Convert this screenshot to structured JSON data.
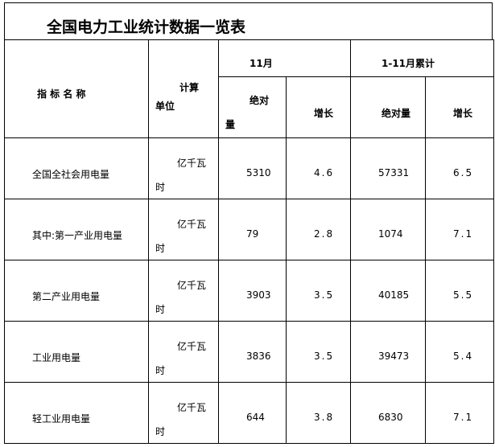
{
  "title": "全国电力工业统计数据一览表",
  "header": {
    "indicator": "指 标 名 称",
    "unit_line1": "计算",
    "unit_line2": "单位",
    "month": "11月",
    "cumulative": "1-11月累计",
    "abs_line1": "绝对",
    "abs_line2": "量",
    "growth": "增长",
    "cum_abs": "绝对量",
    "cum_growth": "增长"
  },
  "rows": [
    {
      "name": "全国全社会用电量",
      "unit1": "亿千瓦",
      "unit2": "时",
      "m_abs": "5310",
      "m_growth": "4.6",
      "c_abs": "57331",
      "c_growth": "6.5"
    },
    {
      "name": "其中:第一产业用电量",
      "unit1": "亿千瓦",
      "unit2": "时",
      "m_abs": "79",
      "m_growth": "2.8",
      "c_abs": "1074",
      "c_growth": "7.1"
    },
    {
      "name": "第二产业用电量",
      "unit1": "亿千瓦",
      "unit2": "时",
      "m_abs": "3903",
      "m_growth": "3.5",
      "c_abs": "40185",
      "c_growth": "5.5"
    },
    {
      "name": "工业用电量",
      "unit1": "亿千瓦",
      "unit2": "时",
      "m_abs": "3836",
      "m_growth": "3.5",
      "c_abs": "39473",
      "c_growth": "5.4"
    },
    {
      "name": "轻工业用电量",
      "unit1": "亿千瓦",
      "unit2": "时",
      "m_abs": "644",
      "m_growth": "3.8",
      "c_abs": "6830",
      "c_growth": "7.1"
    }
  ]
}
